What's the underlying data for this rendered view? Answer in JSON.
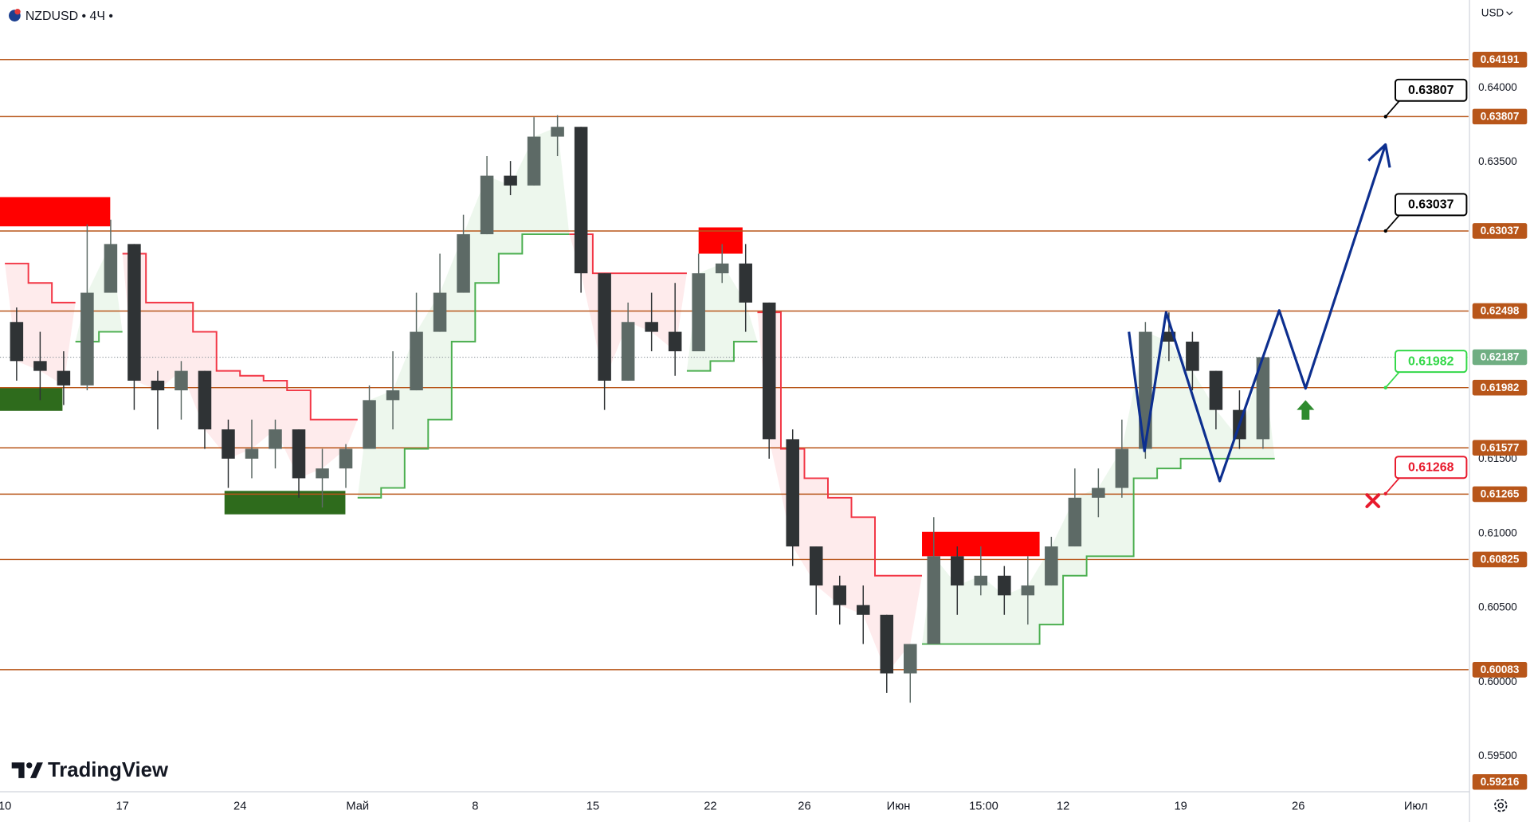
{
  "chart_data": {
    "type": "candlestick",
    "symbol": "NZDUSD",
    "separator": "•",
    "interval": "4Ч",
    "currency": "USD",
    "brand": "TradingView",
    "x": [
      0.5,
      1.5,
      2.5,
      3.5,
      4.5,
      5.5,
      6.5,
      7.5,
      8.5,
      9.5,
      10.5,
      11.5,
      12.5,
      13.5,
      14.5,
      15.5,
      16.5,
      17.5,
      18.5,
      19.5,
      20.5,
      21.5,
      22.5,
      23.5,
      24.5,
      25.5,
      26.5,
      27.5,
      28.5,
      29.5,
      30.5,
      31.5,
      32.5,
      33.5,
      34.5,
      35.5,
      36.5,
      37.5,
      38.5,
      39.5,
      40.5,
      41.5,
      42.5,
      43.5,
      44.5,
      45.5,
      46.5,
      47.5,
      48.5,
      49.5,
      50.5,
      51.5,
      52.5,
      53.5
    ],
    "open": [
      0.62424,
      0.62161,
      0.62095,
      0.61997,
      0.62621,
      0.62949,
      0.62029,
      0.61964,
      0.62095,
      0.61701,
      0.61504,
      0.6157,
      0.61701,
      0.61372,
      0.61438,
      0.6157,
      0.61898,
      0.61964,
      0.62358,
      0.62621,
      0.63015,
      0.63409,
      0.63343,
      0.63672,
      0.63738,
      0.62752,
      0.62029,
      0.62424,
      0.62358,
      0.62227,
      0.62752,
      0.62818,
      0.62555,
      0.61635,
      0.60913,
      0.6065,
      0.60518,
      0.60453,
      0.60058,
      0.60256,
      0.60847,
      0.6065,
      0.60716,
      0.60584,
      0.6065,
      0.60913,
      0.61241,
      0.61307,
      0.6157,
      0.62358,
      0.62292,
      0.62095,
      0.61832,
      0.61635
    ],
    "high": [
      0.62522,
      0.62358,
      0.62227,
      0.63081,
      0.63113,
      0.62949,
      0.62095,
      0.62161,
      0.62095,
      0.61767,
      0.61767,
      0.61767,
      0.61701,
      0.6157,
      0.61602,
      0.61997,
      0.62227,
      0.62621,
      0.62884,
      0.63146,
      0.63541,
      0.63508,
      0.63803,
      0.63816,
      0.63738,
      0.62752,
      0.62555,
      0.62621,
      0.62687,
      0.62884,
      0.62949,
      0.62949,
      0.62555,
      0.61701,
      0.60913,
      0.60716,
      0.6065,
      0.60453,
      0.60256,
      0.6111,
      0.60913,
      0.60913,
      0.60781,
      0.60847,
      0.60978,
      0.61438,
      0.61438,
      0.61767,
      0.62424,
      0.62489,
      0.62358,
      0.62095,
      0.61964,
      0.62194
    ],
    "low": [
      0.62029,
      0.61898,
      0.61865,
      0.61964,
      0.62621,
      0.61832,
      0.61701,
      0.61767,
      0.6157,
      0.61307,
      0.61372,
      0.61438,
      0.61241,
      0.61175,
      0.61307,
      0.6157,
      0.61701,
      0.61964,
      0.62358,
      0.62621,
      0.63015,
      0.63278,
      0.63343,
      0.63541,
      0.62621,
      0.61832,
      0.62029,
      0.62227,
      0.62062,
      0.62227,
      0.62687,
      0.62358,
      0.61504,
      0.60781,
      0.60453,
      0.60387,
      0.60256,
      0.59927,
      0.59861,
      0.60256,
      0.60453,
      0.60584,
      0.60453,
      0.60387,
      0.6065,
      0.60913,
      0.6111,
      0.61241,
      0.61504,
      0.62161,
      0.61964,
      0.61701,
      0.6157,
      0.6157
    ],
    "close": [
      0.62161,
      0.62095,
      0.61997,
      0.62621,
      0.62949,
      0.62029,
      0.61964,
      0.62095,
      0.61701,
      0.61504,
      0.6157,
      0.61701,
      0.61372,
      0.61438,
      0.6157,
      0.61898,
      0.61964,
      0.62358,
      0.62621,
      0.63015,
      0.63409,
      0.63343,
      0.63672,
      0.63738,
      0.62752,
      0.62029,
      0.62424,
      0.62358,
      0.62227,
      0.62752,
      0.62818,
      0.62555,
      0.61635,
      0.60913,
      0.6065,
      0.60518,
      0.60453,
      0.60058,
      0.60256,
      0.60847,
      0.6065,
      0.60716,
      0.60584,
      0.6065,
      0.60913,
      0.61241,
      0.61307,
      0.6157,
      0.62358,
      0.62292,
      0.62095,
      0.61832,
      0.61635,
      0.62187
    ],
    "up_color": "#5d6a66",
    "down_color": "#2f3335",
    "xlim": [
      -0.207,
      62.24
    ],
    "xticks": [
      {
        "value": 0,
        "label": "10"
      },
      {
        "value": 5,
        "label": "17"
      },
      {
        "value": 10,
        "label": "24"
      },
      {
        "value": 15,
        "label": "Май"
      },
      {
        "value": 20,
        "label": "8"
      },
      {
        "value": 25,
        "label": "15"
      },
      {
        "value": 30,
        "label": "22"
      },
      {
        "value": 34,
        "label": "26"
      },
      {
        "value": 38,
        "label": "Июн"
      },
      {
        "value": 41.625,
        "label": "15:00"
      },
      {
        "value": 45,
        "label": "12"
      },
      {
        "value": 50,
        "label": "19"
      },
      {
        "value": 55,
        "label": "26"
      },
      {
        "value": 60,
        "label": "Июл"
      }
    ],
    "ylim": [
      0.59268,
      0.64592
    ],
    "yticks": [
      {
        "value": 0.64,
        "label": "0.64000"
      },
      {
        "value": 0.635,
        "label": "0.63500"
      },
      {
        "value": 0.615,
        "label": "0.61500"
      },
      {
        "value": 0.61,
        "label": "0.61000"
      },
      {
        "value": 0.605,
        "label": "0.60500"
      },
      {
        "value": 0.6,
        "label": "0.60000"
      },
      {
        "value": 0.595,
        "label": "0.59500"
      }
    ],
    "levels": {
      "values": [
        0.64191,
        0.63807,
        0.63037,
        0.62498,
        0.61982,
        0.61577,
        0.61265,
        0.60825,
        0.60083,
        0.59216
      ],
      "color": "#b8561a"
    },
    "last_price": 0.62187,
    "last_color": "#6fae82",
    "supertrend": {
      "up": [
        null,
        null,
        null,
        0.62292,
        0.62358,
        null,
        null,
        null,
        null,
        null,
        null,
        null,
        null,
        null,
        null,
        0.61241,
        0.61307,
        0.6157,
        0.61767,
        0.62292,
        0.62687,
        0.62884,
        0.63015,
        0.63015,
        null,
        null,
        null,
        null,
        null,
        0.62095,
        0.62161,
        0.62292,
        null,
        null,
        null,
        null,
        null,
        null,
        null,
        0.60256,
        0.60256,
        0.60256,
        0.60256,
        0.60256,
        0.60387,
        0.60716,
        0.60847,
        0.60847,
        0.61372,
        0.61438,
        0.61504,
        0.61504,
        0.61504,
        0.61504
      ],
      "down": [
        0.62818,
        0.62687,
        0.62555,
        null,
        null,
        0.62884,
        0.62555,
        0.62555,
        0.62358,
        0.62095,
        0.62062,
        0.62029,
        0.61964,
        0.61767,
        0.61767,
        null,
        null,
        null,
        null,
        null,
        null,
        null,
        null,
        null,
        0.63015,
        0.62752,
        0.62752,
        0.62752,
        0.62752,
        null,
        null,
        null,
        0.62489,
        0.6157,
        0.61372,
        0.61241,
        0.6111,
        0.60716,
        0.60716,
        null,
        null,
        null,
        null,
        null,
        null,
        null,
        null,
        null,
        null,
        null,
        null,
        null,
        null,
        null
      ],
      "up_color": "#4caf50",
      "down_color": "#f23645"
    },
    "zones": [
      {
        "x": [
          -0.207,
          4.48
        ],
        "y": [
          0.63068,
          0.63265
        ],
        "color": "#ff0000"
      },
      {
        "x": [
          -0.207,
          2.45
        ],
        "y": [
          0.61826,
          0.61983
        ],
        "color": "#2e6b1c"
      },
      {
        "x": [
          9.34,
          14.48
        ],
        "y": [
          0.61129,
          0.61287
        ],
        "color": "#2e6b1c"
      },
      {
        "x": [
          29.5,
          31.37
        ],
        "y": [
          0.62884,
          0.63061
        ],
        "color": "#ff0000"
      },
      {
        "x": [
          39.0,
          44.0
        ],
        "y": [
          0.60847,
          0.61011
        ],
        "color": "#ff0000"
      }
    ],
    "projection": {
      "x": [
        47.8,
        48.46,
        49.38,
        51.66,
        54.19,
        55.31,
        58.71
      ],
      "y": [
        0.62358,
        0.61556,
        0.62489,
        0.61353,
        0.62502,
        0.61977,
        0.63619
      ],
      "color": "#0d2f8f"
    },
    "signals": [
      {
        "kind": "buy",
        "x": 55.31,
        "y": 0.61832,
        "color": "#2e8b2e"
      },
      {
        "kind": "stop",
        "x": 58.17,
        "y": 0.61221,
        "color": "#e8192c"
      }
    ],
    "callouts": [
      {
        "value": 0.63807,
        "color": "#000000"
      },
      {
        "value": 0.63037,
        "color": "#000000"
      },
      {
        "value": 0.61982,
        "color": "#34d849"
      },
      {
        "value": 0.61268,
        "color": "#e8192c"
      }
    ]
  }
}
